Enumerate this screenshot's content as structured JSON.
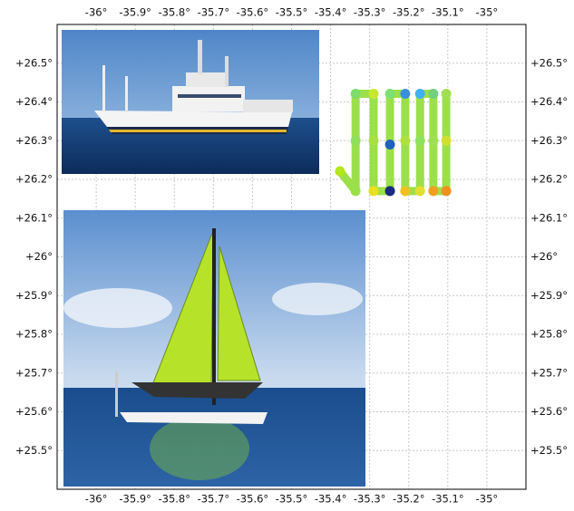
{
  "chart_data": {
    "type": "map",
    "xlim": [
      -36.1,
      -34.9
    ],
    "ylim": [
      25.4,
      26.6
    ],
    "grid": true,
    "xticks": [
      {
        "value": -36,
        "label": "-36°"
      },
      {
        "value": -35.9,
        "label": "-35.9°"
      },
      {
        "value": -35.8,
        "label": "-35.8°"
      },
      {
        "value": -35.7,
        "label": "-35.7°"
      },
      {
        "value": -35.6,
        "label": "-35.6°"
      },
      {
        "value": -35.5,
        "label": "-35.5°"
      },
      {
        "value": -35.4,
        "label": "-35.4°"
      },
      {
        "value": -35.3,
        "label": "-35.3°"
      },
      {
        "value": -35.2,
        "label": "-35.2°"
      },
      {
        "value": -35.1,
        "label": "-35.1°"
      },
      {
        "value": -35,
        "label": "-35°"
      }
    ],
    "yticks": [
      {
        "value": 26.5,
        "label": "+26.5°"
      },
      {
        "value": 26.4,
        "label": "+26.4°"
      },
      {
        "value": 26.3,
        "label": "+26.3°"
      },
      {
        "value": 26.2,
        "label": "+26.2°"
      },
      {
        "value": 26.1,
        "label": "+26.1°"
      },
      {
        "value": 26,
        "label": "+26°"
      },
      {
        "value": 25.9,
        "label": "+25.9°"
      },
      {
        "value": 25.8,
        "label": "+25.8°"
      },
      {
        "value": 25.7,
        "label": "+25.7°"
      },
      {
        "value": 25.6,
        "label": "+25.6°"
      },
      {
        "value": 25.5,
        "label": "+25.5°"
      }
    ],
    "track": {
      "line_color": "#9be04a",
      "lon": [
        -35.376,
        -35.336,
        -35.336,
        -35.336,
        -35.29,
        -35.29,
        -35.29,
        -35.248,
        -35.248,
        -35.248,
        -35.209,
        -35.209,
        -35.209,
        -35.171,
        -35.171,
        -35.171,
        -35.137,
        -35.137,
        -35.137,
        -35.104,
        -35.104,
        -35.104
      ],
      "lat": [
        26.221,
        26.17,
        26.3,
        26.421,
        26.421,
        26.3,
        26.17,
        26.17,
        26.29,
        26.421,
        26.421,
        26.3,
        26.17,
        26.17,
        26.3,
        26.421,
        26.421,
        26.3,
        26.17,
        26.17,
        26.3,
        26.421
      ],
      "colors": [
        "#b5e61d",
        "#9be04a",
        "#8ee05a",
        "#7ddc6a",
        "#c8e830",
        "#a8e040",
        "#e8e020",
        "#1a2a80",
        "#2060c0",
        "#7ee070",
        "#3a8ee0",
        "#b0e040",
        "#f0c020",
        "#e0e030",
        "#90e060",
        "#40b0f0",
        "#70d080",
        "#a0e050",
        "#f0a020",
        "#f09020",
        "#d0e030",
        "#a0e050"
      ]
    }
  }
}
